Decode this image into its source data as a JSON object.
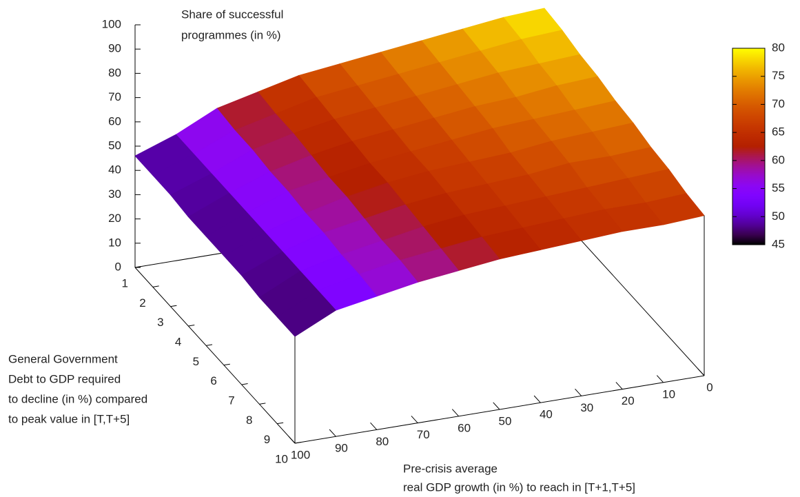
{
  "chart_data": {
    "type": "surface3d",
    "zlabel": [
      "Share of successful",
      "programmes (in %)"
    ],
    "ylabel": [
      "General Government",
      "Debt to GDP required",
      "to decline (in %) compared",
      "to peak value in [T,T+5]"
    ],
    "xlabel": [
      "Pre-crisis average",
      "real GDP growth (in %) to reach in [T+1,T+5]"
    ],
    "x": [
      0,
      10,
      20,
      30,
      40,
      50,
      60,
      70,
      80,
      90,
      100
    ],
    "y": [
      1,
      2,
      3,
      4,
      5,
      6,
      7,
      8,
      9,
      10
    ],
    "values": [
      [
        79,
        78,
        76,
        74,
        72,
        70,
        68,
        64,
        60,
        52,
        46
      ],
      [
        78,
        77,
        75,
        73,
        71,
        69,
        67,
        63,
        59,
        52,
        46
      ],
      [
        76,
        75,
        74,
        72,
        70,
        68,
        66,
        63,
        59,
        52,
        46
      ],
      [
        75,
        74,
        72,
        71,
        69,
        67,
        65,
        62,
        58,
        52,
        45
      ],
      [
        73,
        72,
        71,
        70,
        68,
        66,
        64,
        61,
        58,
        52,
        45
      ],
      [
        72,
        71,
        70,
        68,
        67,
        66,
        64,
        61,
        57,
        52,
        45
      ],
      [
        70,
        69,
        69,
        67,
        66,
        65,
        63,
        60,
        57,
        52,
        45
      ],
      [
        69,
        68,
        67,
        66,
        65,
        64,
        62,
        59,
        56,
        52,
        44
      ],
      [
        67,
        66,
        66,
        65,
        64,
        63,
        61,
        59,
        56,
        52,
        44
      ],
      [
        66,
        65,
        65,
        64,
        63,
        62,
        60,
        58,
        55,
        52,
        44
      ]
    ],
    "xlim": [
      0,
      100
    ],
    "xticks": [
      0,
      10,
      20,
      30,
      40,
      50,
      60,
      70,
      80,
      90,
      100
    ],
    "ylim": [
      1,
      10
    ],
    "yticks": [
      1,
      2,
      3,
      4,
      5,
      6,
      7,
      8,
      9,
      10
    ],
    "zlim": [
      0,
      100
    ],
    "zticks": [
      0,
      10,
      20,
      30,
      40,
      50,
      60,
      70,
      80,
      90,
      100
    ],
    "cblim": [
      45,
      80
    ],
    "cbticks": [
      45,
      50,
      55,
      60,
      65,
      70,
      75,
      80
    ]
  }
}
